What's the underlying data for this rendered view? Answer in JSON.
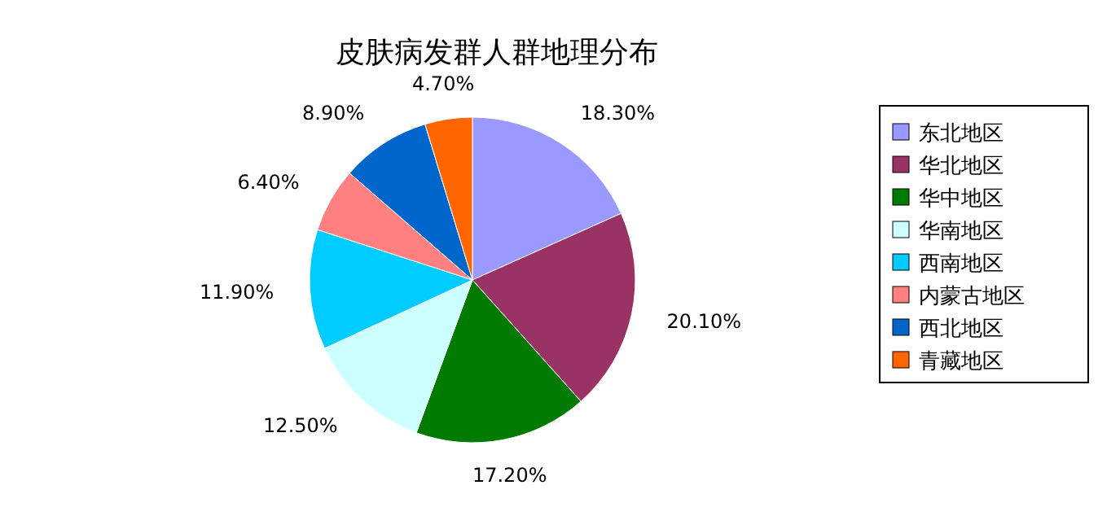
{
  "chart_data": {
    "type": "pie",
    "title": "皮肤病发群人群地理分布",
    "categories": [
      "东北地区",
      "华北地区",
      "华中地区",
      "华南地区",
      "西南地区",
      "内蒙古地区",
      "西北地区",
      "青藏地区"
    ],
    "values": [
      18.3,
      20.1,
      17.2,
      12.5,
      11.9,
      6.4,
      8.9,
      4.7
    ],
    "value_labels": [
      "18.30%",
      "20.10%",
      "17.20%",
      "12.50%",
      "11.90%",
      "6.40%",
      "8.90%",
      "4.70%"
    ],
    "colors": [
      "#9999ff",
      "#993366",
      "#007a00",
      "#ccffff",
      "#00ccff",
      "#ff8080",
      "#0066cc",
      "#ff6600"
    ],
    "legend": "right"
  }
}
